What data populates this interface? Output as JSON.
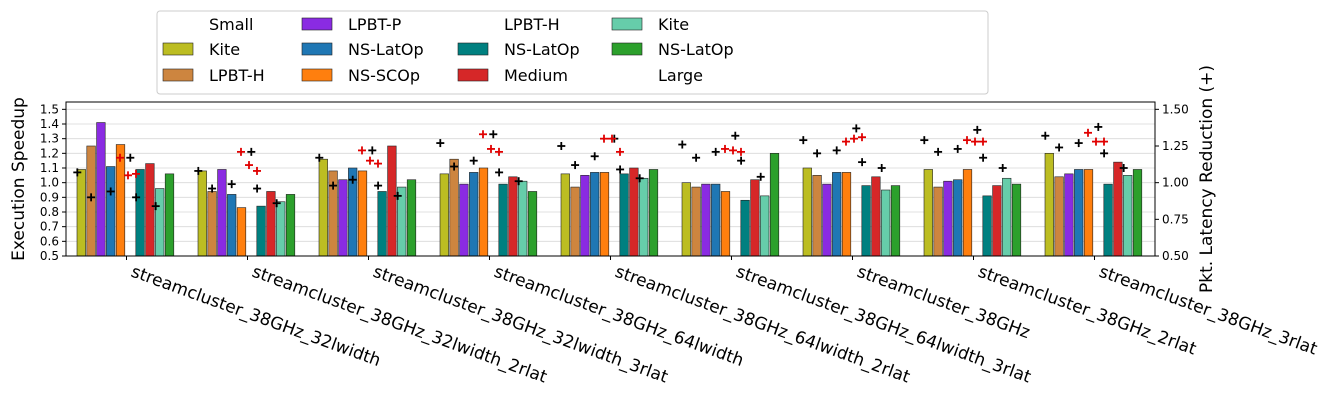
{
  "chart_data": {
    "type": "bar",
    "categories": [
      "streamcluster_38GHz_32lwidth",
      "streamcluster_38GHz_32lwidth_2rlat",
      "streamcluster_38GHz_32lwidth_3rlat",
      "streamcluster_38GHz_64lwidth",
      "streamcluster_38GHz_64lwidth_2rlat",
      "streamcluster_38GHz_64lwidth_3rlat",
      "streamcluster_38GHz",
      "streamcluster_38GHz_2rlat",
      "streamcluster_38GHz_3rlat"
    ],
    "ylabel": "Execution Speedup",
    "y2label": "Pkt. Latency Reduction (+)",
    "ylim": [
      0.5,
      1.55
    ],
    "y2lim": [
      0.5,
      1.55
    ],
    "yticks": [
      "0.5",
      "0.6",
      "0.7",
      "0.8",
      "0.9",
      "1.0",
      "1.1",
      "1.2",
      "1.3",
      "1.4",
      "1.5"
    ],
    "y2ticks": [
      "0.50",
      "0.75",
      "1.00",
      "1.25",
      "1.50"
    ],
    "grid": true,
    "legend_position": "top",
    "legend_entries": [
      {
        "label": "Small",
        "color": ""
      },
      {
        "label": "Kite",
        "color": "#bcbd22"
      },
      {
        "label": "LPBT-H",
        "color": "#cd853f"
      },
      {
        "label": "LPBT-P",
        "color": "#8a2be2"
      },
      {
        "label": "NS-LatOp",
        "color": "#1f77b4"
      },
      {
        "label": "NS-SCOp",
        "color": "#ff7f0e"
      },
      {
        "label": "LPBT-H",
        "color": ""
      },
      {
        "label": "NS-LatOp",
        "color": "#008080"
      },
      {
        "label": "Medium",
        "color": "#d62728"
      },
      {
        "label": "Kite",
        "color": "#66cdaa"
      },
      {
        "label": "NS-LatOp",
        "color": "#2ca02c"
      },
      {
        "label": "Large",
        "color": ""
      }
    ],
    "series": [
      {
        "name": "Small Kite",
        "group": "Small",
        "color": "#bcbd22",
        "values": [
          1.09,
          1.08,
          1.16,
          1.06,
          1.06,
          1.0,
          1.1,
          1.09,
          1.2
        ],
        "latency": [
          1.07,
          1.08,
          1.17,
          1.27,
          1.25,
          1.26,
          1.29,
          1.29,
          1.32
        ]
      },
      {
        "name": "Small LPBT-H",
        "group": "Small",
        "color": "#cd853f",
        "values": [
          1.25,
          0.94,
          1.08,
          1.16,
          0.97,
          0.97,
          1.05,
          0.97,
          1.04
        ],
        "latency": [
          0.9,
          0.96,
          0.98,
          1.11,
          1.12,
          1.17,
          1.2,
          1.21,
          1.24
        ]
      },
      {
        "name": "Small LPBT-P",
        "group": "Small",
        "color": "#8a2be2",
        "values": [
          1.41,
          1.09,
          1.02,
          0.99,
          1.05,
          0.99,
          0.99,
          1.01,
          1.06
        ]
      },
      {
        "name": "Small NS-LatOp",
        "group": "Small",
        "color": "#1f77b4",
        "values": [
          1.11,
          0.92,
          1.1,
          1.07,
          1.07,
          0.99,
          1.07,
          1.02,
          1.09
        ],
        "latency": [
          0.94,
          0.99,
          1.02,
          1.15,
          1.18,
          1.21,
          1.22,
          1.23,
          1.27
        ]
      },
      {
        "name": "Small NS-SCOp",
        "group": "Small",
        "color": "#ff7f0e",
        "values": [
          1.26,
          0.83,
          1.08,
          1.1,
          1.07,
          0.94,
          1.07,
          1.09,
          1.09
        ]
      },
      {
        "name": "Medium LPBT-H",
        "group": "Medium",
        "color": "#ffffff",
        "values": [
          1.0,
          1.0,
          1.0,
          1.0,
          1.0,
          1.0,
          1.0,
          1.0,
          1.0
        ],
        "latency": [
          1.17,
          1.21,
          1.22,
          1.33,
          1.3,
          1.32,
          1.37,
          1.36,
          1.38
        ]
      },
      {
        "name": "Medium NS-LatOp",
        "group": "Medium",
        "color": "#008080",
        "values": [
          1.09,
          0.84,
          0.94,
          0.99,
          1.06,
          0.88,
          0.98,
          0.91,
          0.99
        ],
        "latency": [
          0.9,
          0.96,
          0.98,
          1.07,
          1.09,
          1.15,
          1.14,
          1.17,
          1.2
        ]
      },
      {
        "name": "Medium Kite",
        "group": "Medium",
        "color": "#d62728",
        "values": [
          1.13,
          0.94,
          1.25,
          1.04,
          1.1,
          1.02,
          1.04,
          0.98,
          1.14
        ]
      },
      {
        "name": "Medium NS-LatOp (2)",
        "group": "Medium",
        "color": "#66cdaa",
        "values": [
          0.96,
          0.87,
          0.97,
          1.01,
          1.03,
          0.91,
          0.95,
          1.03,
          1.05
        ],
        "latency": [
          0.84,
          0.86,
          0.91,
          1.01,
          1.03,
          1.04,
          1.1,
          1.1,
          1.1
        ]
      },
      {
        "name": "Large Kite",
        "group": "Large",
        "color": "#2ca02c",
        "values": [
          1.06,
          0.92,
          1.02,
          0.94,
          1.09,
          1.2,
          0.98,
          0.99,
          1.09
        ]
      }
    ],
    "medium_latency": [
      [
        1.17,
        1.21,
        1.22,
        1.33,
        1.3,
        1.23,
        1.28,
        1.29,
        1.34
      ],
      [
        1.05,
        1.12,
        1.15,
        1.23,
        1.3,
        1.22,
        1.3,
        1.28,
        1.28
      ],
      [
        1.06,
        1.08,
        1.13,
        1.21,
        1.21,
        1.21,
        1.31,
        1.28,
        1.28
      ]
    ]
  }
}
